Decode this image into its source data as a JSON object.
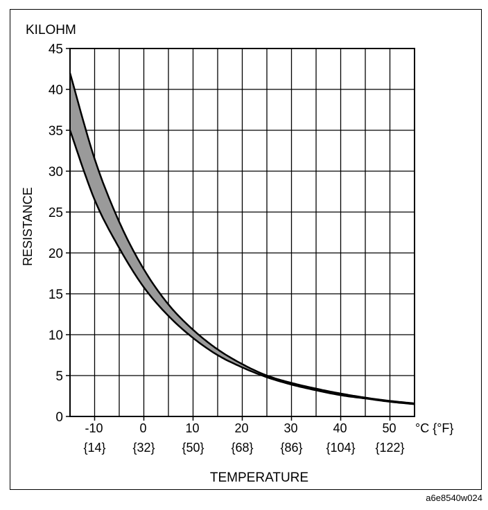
{
  "chart_data": {
    "type": "line",
    "title": "",
    "unit_label": "KILOHM",
    "xlabel": "TEMPERATURE",
    "ylabel": "RESISTANCE",
    "x_unit_label": "°C {°F}",
    "xlim": [
      -15,
      55
    ],
    "ylim": [
      0,
      45
    ],
    "x_ticks": [
      -10,
      0,
      10,
      20,
      30,
      40,
      50
    ],
    "x_tick_labels_f": [
      "{14}",
      "{32}",
      "{50}",
      "{68}",
      "{86}",
      "{104}",
      "{122}"
    ],
    "y_ticks": [
      0,
      5,
      10,
      15,
      20,
      25,
      30,
      35,
      40,
      45
    ],
    "grid": true,
    "band_shaded": true,
    "series": [
      {
        "name": "upper limit",
        "x": [
          -15,
          -10,
          -5,
          0,
          5,
          10,
          15,
          20,
          25,
          30,
          35,
          40,
          45,
          50,
          55
        ],
        "values": [
          42.0,
          31.5,
          23.8,
          18.0,
          13.7,
          10.6,
          8.2,
          6.4,
          5.0,
          4.1,
          3.4,
          2.8,
          2.3,
          1.9,
          1.6
        ]
      },
      {
        "name": "lower limit",
        "x": [
          -15,
          -10,
          -5,
          0,
          5,
          10,
          15,
          20,
          25,
          30,
          35,
          40,
          45,
          50,
          55
        ],
        "values": [
          35.0,
          26.5,
          20.6,
          15.8,
          12.3,
          9.6,
          7.5,
          6.0,
          4.8,
          3.9,
          3.2,
          2.6,
          2.2,
          1.8,
          1.5
        ]
      }
    ]
  },
  "figure_code": "a6e8540w024"
}
